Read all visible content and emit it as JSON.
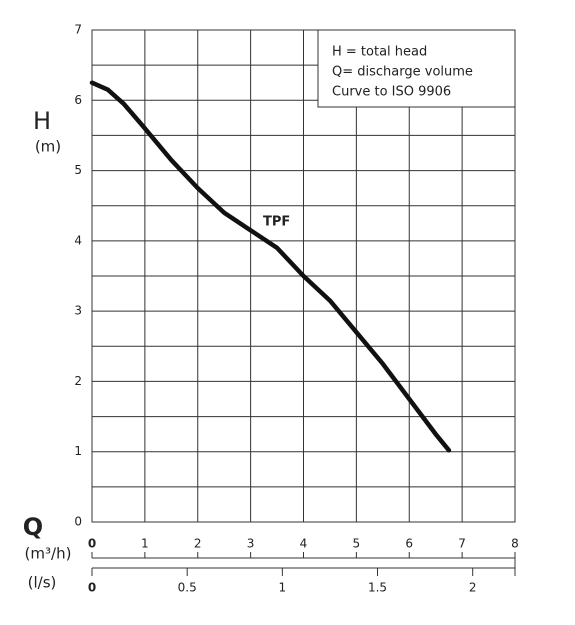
{
  "chart_data": {
    "type": "line",
    "ylabel": "H",
    "yunit": "(m)",
    "xlabel": "Q",
    "xunit": "(m³/h)",
    "x2unit": "(l/s)",
    "notes": [
      "H = total head",
      "Q= discharge volume",
      "Curve to ISO 9906"
    ],
    "x": [
      0,
      0.3,
      0.6,
      1,
      1.5,
      2,
      2.5,
      3,
      3.5,
      4,
      4.5,
      5,
      5.5,
      6,
      6.5,
      6.75
    ],
    "series": [
      {
        "name": "TPF",
        "color": "#111111",
        "values": [
          6.25,
          6.15,
          5.95,
          5.6,
          5.15,
          4.75,
          4.4,
          4.15,
          3.9,
          3.5,
          3.15,
          2.7,
          2.25,
          1.75,
          1.25,
          1.02
        ]
      }
    ],
    "xlim": [
      0,
      8
    ],
    "xticks": [
      0,
      1,
      2,
      3,
      4,
      5,
      6,
      7,
      8
    ],
    "x2lim": [
      0,
      2.2222
    ],
    "x2ticks": [
      0,
      0.5,
      1,
      1.5,
      2
    ],
    "ylim": [
      0,
      7
    ],
    "yticks": [
      0,
      1,
      2,
      3,
      4,
      5,
      6,
      7
    ],
    "ygrid": [
      0,
      0.5,
      1,
      1.5,
      2,
      2.5,
      3,
      3.5,
      4,
      4.5,
      5,
      5.5,
      6,
      6.5,
      7
    ],
    "grid": true
  }
}
